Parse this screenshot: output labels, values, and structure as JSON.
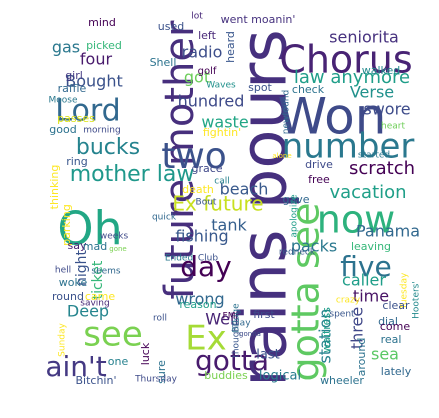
{
  "words": [
    {
      "text": "rains pours",
      "color": "#46307e",
      "rotate": true
    },
    {
      "text": "Won",
      "color": "#3e4a89",
      "rotate": false
    },
    {
      "text": "Chorus",
      "color": "#482374",
      "rotate": false
    },
    {
      "text": "future mother",
      "color": "#472f7d",
      "rotate": true
    },
    {
      "text": "number",
      "color": "#2a788e",
      "rotate": false
    },
    {
      "text": "gotta see",
      "color": "#5ec962",
      "rotate": true
    },
    {
      "text": "Oh",
      "color": "#22a785",
      "rotate": false
    },
    {
      "text": "two",
      "color": "#3b528b",
      "rotate": false
    },
    {
      "text": "Lord",
      "color": "#31688e",
      "rotate": false
    },
    {
      "text": "now",
      "color": "#2db27d",
      "rotate": false
    },
    {
      "text": "see",
      "color": "#7ad151",
      "rotate": false
    },
    {
      "text": "Ex",
      "color": "#a5db36",
      "rotate": false
    },
    {
      "text": "gotta",
      "color": "#481b6d",
      "rotate": false
    },
    {
      "text": "ain't",
      "color": "#443983",
      "rotate": false
    },
    {
      "text": "five",
      "color": "#2c728e",
      "rotate": false
    },
    {
      "text": "day",
      "color": "#440154",
      "rotate": false
    },
    {
      "text": "mother law",
      "color": "#1f988b",
      "rotate": false
    },
    {
      "text": "Ex future",
      "color": "#c8e020",
      "rotate": false
    },
    {
      "text": "law anymore",
      "color": "#1f9e89",
      "rotate": false
    },
    {
      "text": "seniorita",
      "color": "#46317e",
      "rotate": false
    },
    {
      "text": "bucks",
      "color": "#25838e",
      "rotate": false
    },
    {
      "text": "Verse",
      "color": "#21918c",
      "rotate": false
    },
    {
      "text": "swore",
      "color": "#3e4c8a",
      "rotate": false
    },
    {
      "text": "scratch",
      "color": "#440154",
      "rotate": false
    },
    {
      "text": "vacation",
      "color": "#1f9f88",
      "rotate": false
    },
    {
      "text": "Panama",
      "color": "#31688e",
      "rotate": false
    },
    {
      "text": "beach",
      "color": "#38598c",
      "rotate": false
    },
    {
      "text": "waste",
      "color": "#21a685",
      "rotate": false
    },
    {
      "text": "hundred",
      "color": "#3e4a89",
      "rotate": false
    },
    {
      "text": "Bought",
      "color": "#3b528b",
      "rotate": false
    },
    {
      "text": "four",
      "color": "#481a6c",
      "rotate": false
    },
    {
      "text": "radio",
      "color": "#3d4e8a",
      "rotate": false
    },
    {
      "text": "got",
      "color": "#6ccd5a",
      "rotate": false
    },
    {
      "text": "gas",
      "color": "#2a788e",
      "rotate": false
    },
    {
      "text": "Deep",
      "color": "#25858e",
      "rotate": false
    },
    {
      "text": "wrong",
      "color": "#31688e",
      "rotate": false
    },
    {
      "text": "Well",
      "color": "#482475",
      "rotate": false
    },
    {
      "text": "tank",
      "color": "#355f8d",
      "rotate": false
    },
    {
      "text": "fishing",
      "color": "#38588c",
      "rotate": false
    },
    {
      "text": "packs",
      "color": "#2a788e",
      "rotate": false
    },
    {
      "text": "time",
      "color": "#471365",
      "rotate": false
    },
    {
      "text": "caller",
      "color": "#1f9e89",
      "rotate": false
    },
    {
      "text": "station",
      "color": "#26818e",
      "rotate": true
    },
    {
      "text": "three",
      "color": "#3f4788",
      "rotate": true
    },
    {
      "text": "sea",
      "color": "#5ac864",
      "rotate": false
    },
    {
      "text": "last",
      "color": "#3b528b",
      "rotate": false
    },
    {
      "text": "logical",
      "color": "#287c8e",
      "rotate": false
    },
    {
      "text": "night",
      "color": "#3a538b",
      "rotate": true
    },
    {
      "text": "ticket",
      "color": "#35b779",
      "rotate": true
    },
    {
      "text": "mind",
      "color": "#440154",
      "rotate": false
    },
    {
      "text": "used",
      "color": "#3b528b",
      "rotate": false
    },
    {
      "text": "went moanin'",
      "color": "#46327e",
      "rotate": false
    },
    {
      "text": "picked",
      "color": "#35b779",
      "rotate": false
    },
    {
      "text": "left",
      "color": "#482878",
      "rotate": false
    },
    {
      "text": "Shell",
      "color": "#2c738e",
      "rotate": false
    },
    {
      "text": "heard",
      "color": "#39568c",
      "rotate": true
    },
    {
      "text": "girl",
      "color": "#443983",
      "rotate": false
    },
    {
      "text": "raffle",
      "color": "#31688e",
      "rotate": false
    },
    {
      "text": "Moose",
      "color": "#2a788e",
      "rotate": false
    },
    {
      "text": "golf",
      "color": "#440154",
      "rotate": false
    },
    {
      "text": "spot",
      "color": "#3b528b",
      "rotate": false
    },
    {
      "text": "Waves",
      "color": "#21918c",
      "rotate": false
    },
    {
      "text": "check",
      "color": "#2c728e",
      "rotate": false
    },
    {
      "text": "walked",
      "color": "#238a8d",
      "rotate": false
    },
    {
      "text": "heart",
      "color": "#6ece58",
      "rotate": false
    },
    {
      "text": "newfound",
      "color": "#31688e",
      "rotate": true
    },
    {
      "text": "passes",
      "color": "#dde318",
      "rotate": false
    },
    {
      "text": "good",
      "color": "#2c728e",
      "rotate": false
    },
    {
      "text": "morning",
      "color": "#3e4a89",
      "rotate": false
    },
    {
      "text": "fightin'",
      "color": "#fde725",
      "rotate": false
    },
    {
      "text": "ring",
      "color": "#39568c",
      "rotate": false
    },
    {
      "text": "thinking",
      "color": "#fde725",
      "rotate": true
    },
    {
      "text": "grace",
      "color": "#3f4889",
      "rotate": false
    },
    {
      "text": "call",
      "color": "#26818e",
      "rotate": false
    },
    {
      "text": "death",
      "color": "#fde725",
      "rotate": false
    },
    {
      "text": "Bout",
      "color": "#39568c",
      "rotate": false
    },
    {
      "text": "alone",
      "color": "#fde725",
      "rotate": false
    },
    {
      "text": "started",
      "color": "#2a788e",
      "rotate": false
    },
    {
      "text": "drive",
      "color": "#3e4a89",
      "rotate": false
    },
    {
      "text": "free",
      "color": "#440154",
      "rotate": false
    },
    {
      "text": "gave",
      "color": "#31688e",
      "rotate": false
    },
    {
      "text": "apologize",
      "color": "#1f9e89",
      "rotate": true
    },
    {
      "text": "parking",
      "color": "#fde725",
      "rotate": true
    },
    {
      "text": "quick",
      "color": "#31688e",
      "rotate": false
    },
    {
      "text": "say",
      "color": "#482173",
      "rotate": false
    },
    {
      "text": "mad",
      "color": "#2c728e",
      "rotate": false
    },
    {
      "text": "weeks",
      "color": "#3e4a89",
      "rotate": false
    },
    {
      "text": "gone",
      "color": "#7ad151",
      "rotate": false
    },
    {
      "text": "Ended",
      "color": "#2a788e",
      "rotate": false
    },
    {
      "text": "Club",
      "color": "#3b528b",
      "rotate": false
    },
    {
      "text": "redneck",
      "color": "#38598c",
      "rotate": false
    },
    {
      "text": "leaving",
      "color": "#35b779",
      "rotate": false
    },
    {
      "text": "Hooters'",
      "color": "#238a8d",
      "rotate": true
    },
    {
      "text": "Tuesday",
      "color": "#fde725",
      "rotate": true
    },
    {
      "text": "hell",
      "color": "#3e4a89",
      "rotate": false
    },
    {
      "text": "seems",
      "color": "#31688e",
      "rotate": false
    },
    {
      "text": "woke",
      "color": "#2c728e",
      "rotate": false
    },
    {
      "text": "came",
      "color": "#fde725",
      "rotate": false
    },
    {
      "text": "round",
      "color": "#3b528b",
      "rotate": false
    },
    {
      "text": "saving",
      "color": "#482878",
      "rotate": false
    },
    {
      "text": "reason",
      "color": "#1f9e89",
      "rotate": false
    },
    {
      "text": "first",
      "color": "#3e4a89",
      "rotate": false
    },
    {
      "text": "Bridge",
      "color": "#2c728e",
      "rotate": true
    },
    {
      "text": "waitress",
      "color": "#1f9e89",
      "rotate": true
    },
    {
      "text": "clear",
      "color": "#3b528b",
      "rotate": false
    },
    {
      "text": "dial",
      "color": "#31688e",
      "rotate": false
    },
    {
      "text": "come",
      "color": "#440154",
      "rotate": false
    },
    {
      "text": "real",
      "color": "#2c728e",
      "rotate": false
    },
    {
      "text": "crazy",
      "color": "#fde725",
      "rotate": false
    },
    {
      "text": "spent",
      "color": "#39568c",
      "rotate": false
    },
    {
      "text": "roll",
      "color": "#3b528b",
      "rotate": false
    },
    {
      "text": "FM",
      "color": "#440154",
      "rotate": false
    },
    {
      "text": "play",
      "color": "#31688e",
      "rotate": false
    },
    {
      "text": "gonna",
      "color": "#3e4a89",
      "rotate": false
    },
    {
      "text": "thought",
      "color": "#39568c",
      "rotate": true
    },
    {
      "text": "around",
      "color": "#2c728e",
      "rotate": true
    },
    {
      "text": "lately",
      "color": "#31688e",
      "rotate": false
    },
    {
      "text": "Sunday",
      "color": "#fde725",
      "rotate": true
    },
    {
      "text": "one",
      "color": "#26818e",
      "rotate": false
    },
    {
      "text": "luck",
      "color": "#440154",
      "rotate": true
    },
    {
      "text": "sure",
      "color": "#2c728e",
      "rotate": true
    },
    {
      "text": "Thursday",
      "color": "#3e4a89",
      "rotate": false
    },
    {
      "text": "buddies",
      "color": "#7ad151",
      "rotate": false
    },
    {
      "text": "wheeler",
      "color": "#2c728e",
      "rotate": false
    },
    {
      "text": "Bitchin'",
      "color": "#3b528b",
      "rotate": false
    },
    {
      "text": "lot",
      "color": "#482878",
      "rotate": false
    }
  ]
}
